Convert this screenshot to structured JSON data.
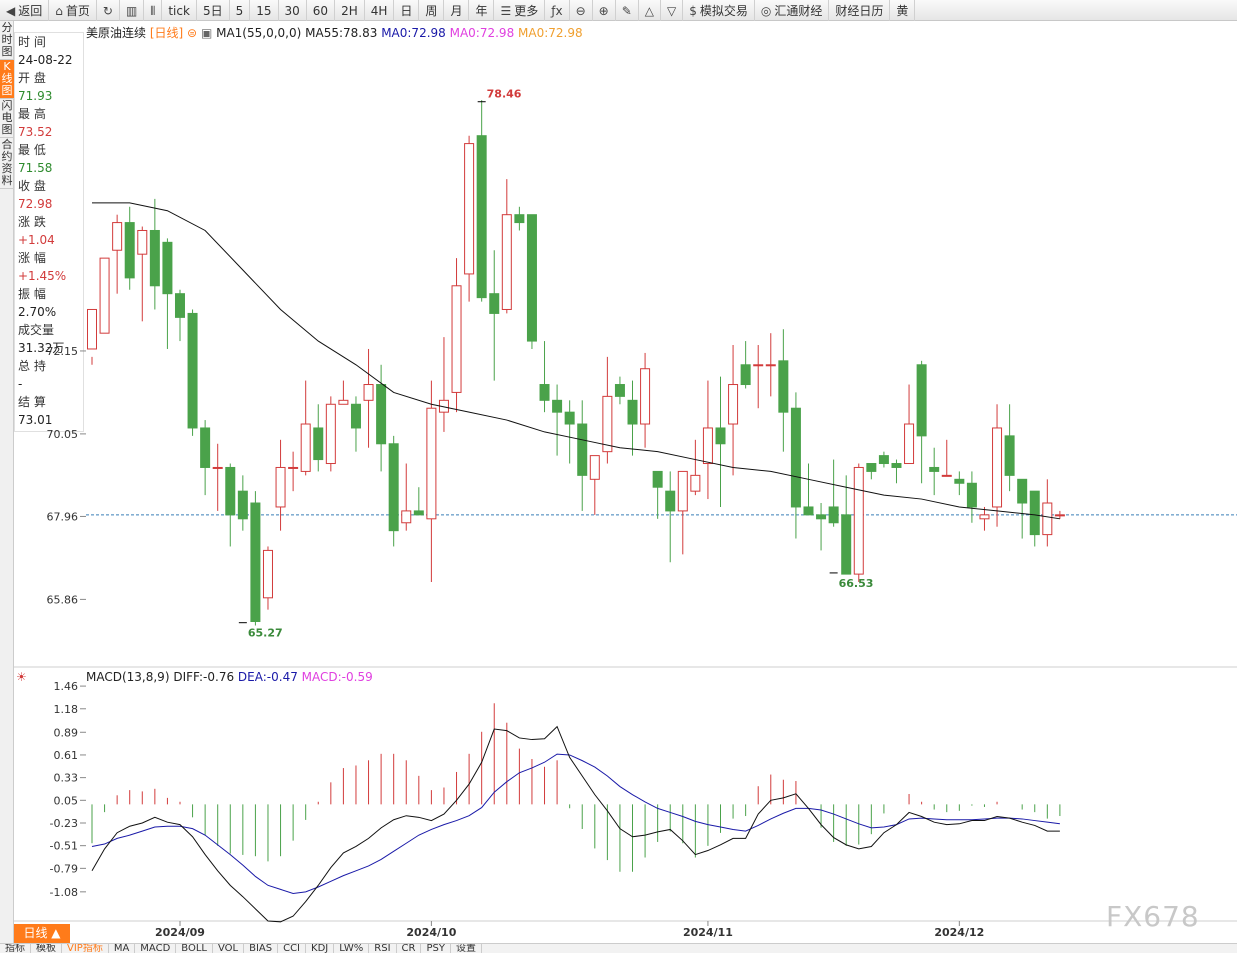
{
  "toolbar": {
    "items": [
      {
        "label": "返回",
        "icon": "back-icon",
        "glyph": "◀"
      },
      {
        "label": "首页",
        "icon": "home-icon",
        "glyph": "⌂"
      },
      {
        "label": "",
        "icon": "refresh-icon",
        "glyph": "↻"
      },
      {
        "label": "",
        "icon": "bar-chart-icon",
        "glyph": "▥"
      },
      {
        "label": "",
        "icon": "candle-icon",
        "glyph": "⫴"
      },
      {
        "label": "tick",
        "icon": "",
        "glyph": ""
      },
      {
        "label": "5日",
        "icon": "",
        "glyph": ""
      },
      {
        "label": "5",
        "icon": "",
        "glyph": ""
      },
      {
        "label": "15",
        "icon": "",
        "glyph": ""
      },
      {
        "label": "30",
        "icon": "",
        "glyph": ""
      },
      {
        "label": "60",
        "icon": "",
        "glyph": ""
      },
      {
        "label": "2H",
        "icon": "",
        "glyph": ""
      },
      {
        "label": "4H",
        "icon": "",
        "glyph": ""
      },
      {
        "label": "日",
        "icon": "",
        "glyph": ""
      },
      {
        "label": "周",
        "icon": "",
        "glyph": ""
      },
      {
        "label": "月",
        "icon": "",
        "glyph": ""
      },
      {
        "label": "年",
        "icon": "",
        "glyph": ""
      },
      {
        "label": "更多",
        "icon": "menu-icon",
        "glyph": "☰"
      },
      {
        "label": "",
        "icon": "formula-icon",
        "glyph": "ƒx"
      },
      {
        "label": "",
        "icon": "zoom-out-icon",
        "glyph": "⊖"
      },
      {
        "label": "",
        "icon": "zoom-in-icon",
        "glyph": "⊕"
      },
      {
        "label": "",
        "icon": "draw-icon",
        "glyph": "✎"
      },
      {
        "label": "",
        "icon": "triangle-up-icon",
        "glyph": "△"
      },
      {
        "label": "",
        "icon": "triangle-down-icon",
        "glyph": "▽"
      },
      {
        "label": "模拟交易",
        "icon": "dollar-icon",
        "glyph": "$"
      },
      {
        "label": "汇通财经",
        "icon": "logo-icon",
        "glyph": "◎"
      },
      {
        "label": "财经日历",
        "icon": "",
        "glyph": ""
      },
      {
        "label": "黄",
        "icon": "",
        "glyph": ""
      }
    ]
  },
  "left_tabs": [
    "分时图",
    "K线图",
    "闪电图",
    "合约资料"
  ],
  "info": [
    {
      "k": "时 间",
      "v": "24-08-22",
      "c": ""
    },
    {
      "k": "开 盘",
      "v": "71.93",
      "c": "green"
    },
    {
      "k": "最 高",
      "v": "73.52",
      "c": "red"
    },
    {
      "k": "最 低",
      "v": "71.58",
      "c": "green"
    },
    {
      "k": "收 盘",
      "v": "72.98",
      "c": "red"
    },
    {
      "k": "涨 跌",
      "v": "+1.04",
      "c": "red"
    },
    {
      "k": "涨 幅",
      "v": "+1.45%",
      "c": "red"
    },
    {
      "k": "振 幅",
      "v": "2.70%",
      "c": ""
    },
    {
      "k": "成交量",
      "v": "31.32万",
      "c": ""
    },
    {
      "k": "总 持",
      "v": "-",
      "c": ""
    },
    {
      "k": "结 算",
      "v": "73.01",
      "c": ""
    }
  ],
  "title": {
    "name": "美原油连续",
    "period": "[日线]",
    "ma1": "MA1(55,0,0,0)",
    "ma55": "MA55:78.83",
    "ma0a": "MA0:72.98",
    "ma0b": "MA0:72.98",
    "ma0c": "MA0:72.98"
  },
  "macd_head": {
    "label": "MACD(13,8,9)",
    "diff": "DIFF:-0.76",
    "dea": "DEA:-0.47",
    "macd": "MACD:-0.59"
  },
  "bottom_tabs": [
    "指标",
    "模板",
    "VIP指标",
    "MA",
    "MACD",
    "BOLL",
    "VOL",
    "BIAS",
    "CCI",
    "KDJ",
    "LW%",
    "RSI",
    "CR",
    "PSY",
    "设置"
  ],
  "daily_tab": "日线 ▲",
  "watermark": "FX678",
  "colors": {
    "up": "#d23b3b",
    "down": "#4aa24a",
    "ma": "#111111",
    "dea": "#1a1aa8",
    "current": "#3a7fb8"
  },
  "chart_data": {
    "type": "candlestick",
    "price_axis": {
      "ticks": [
        72.15,
        70.05,
        67.96,
        65.86
      ],
      "range": [
        64.3,
        80.2
      ]
    },
    "date_axis": [
      {
        "label": "2024/09",
        "index": 7
      },
      {
        "label": "2024/10",
        "index": 27
      },
      {
        "label": "2024/11",
        "index": 49
      },
      {
        "label": "2024/12",
        "index": 69
      }
    ],
    "current_price": 68.0,
    "annotations": [
      {
        "text": "78.46",
        "index": 31,
        "value": 78.46,
        "color": "red"
      },
      {
        "text": "65.27",
        "index": 12,
        "value": 65.27,
        "color": "green"
      },
      {
        "text": "66.53",
        "index": 59,
        "value": 66.53,
        "color": "green"
      }
    ],
    "candles": [
      [
        72.2,
        73.2,
        72.0,
        71.8
      ],
      [
        72.6,
        74.5,
        71.9,
        71.9
      ],
      [
        74.7,
        75.4,
        75.6,
        73.6
      ],
      [
        75.4,
        74.0,
        75.8,
        73.7
      ],
      [
        74.6,
        75.2,
        75.3,
        72.9
      ],
      [
        75.2,
        73.8,
        76.0,
        73.2
      ],
      [
        74.9,
        73.6,
        75.0,
        72.2
      ],
      [
        73.6,
        73.0,
        73.7,
        72.4
      ],
      [
        73.1,
        70.2,
        73.2,
        70.0
      ],
      [
        70.2,
        69.2,
        70.4,
        68.5
      ],
      [
        69.2,
        69.2,
        69.8,
        68.1
      ],
      [
        69.2,
        68.0,
        69.3,
        67.2
      ],
      [
        68.6,
        67.9,
        69.0,
        67.6
      ],
      [
        68.3,
        65.3,
        68.6,
        65.2
      ],
      [
        65.9,
        67.1,
        67.2,
        65.6
      ],
      [
        68.2,
        69.2,
        69.9,
        67.6
      ],
      [
        69.2,
        69.2,
        69.6,
        68.6
      ],
      [
        69.1,
        70.3,
        71.4,
        69.0
      ],
      [
        70.2,
        69.4,
        70.8,
        69.1
      ],
      [
        69.3,
        70.8,
        71.0,
        69.1
      ],
      [
        70.8,
        70.9,
        71.4,
        70.8
      ],
      [
        70.8,
        70.2,
        71.0,
        69.6
      ],
      [
        70.9,
        71.3,
        72.2,
        69.7
      ],
      [
        71.3,
        69.8,
        71.8,
        69.1
      ],
      [
        69.8,
        67.6,
        70.0,
        67.2
      ],
      [
        67.8,
        68.1,
        69.3,
        67.6
      ],
      [
        68.1,
        68.0,
        68.7,
        68.0
      ],
      [
        67.9,
        70.7,
        71.4,
        66.3
      ],
      [
        70.6,
        70.9,
        72.5,
        70.1
      ],
      [
        71.1,
        73.8,
        74.5,
        70.6
      ],
      [
        74.1,
        77.4,
        77.6,
        73.4
      ],
      [
        77.6,
        73.5,
        78.5,
        73.4
      ],
      [
        73.6,
        73.1,
        74.7,
        71.4
      ],
      [
        73.2,
        75.6,
        76.5,
        73.1
      ],
      [
        75.6,
        75.4,
        75.8,
        75.2
      ],
      [
        75.6,
        72.4,
        75.5,
        72.2
      ],
      [
        71.3,
        70.9,
        72.4,
        70.6
      ],
      [
        70.9,
        70.6,
        71.3,
        69.5
      ],
      [
        70.6,
        70.3,
        70.9,
        69.3
      ],
      [
        70.3,
        69.0,
        70.9,
        68.1
      ],
      [
        68.9,
        69.5,
        69.4,
        68.0
      ],
      [
        69.6,
        71.0,
        72.0,
        69.3
      ],
      [
        71.3,
        71.0,
        71.5,
        70.8
      ],
      [
        70.9,
        70.3,
        71.4,
        69.5
      ],
      [
        70.3,
        71.7,
        72.1,
        69.7
      ],
      [
        69.1,
        68.7,
        69.1,
        67.9
      ],
      [
        68.6,
        68.1,
        69.1,
        66.8
      ],
      [
        68.1,
        69.1,
        69.1,
        67.0
      ],
      [
        68.6,
        69.0,
        69.9,
        68.5
      ],
      [
        69.3,
        70.2,
        71.4,
        68.4
      ],
      [
        70.2,
        69.8,
        71.5,
        68.2
      ],
      [
        70.3,
        71.3,
        72.3,
        69.0
      ],
      [
        71.8,
        71.3,
        72.4,
        71.2
      ],
      [
        71.8,
        71.8,
        72.3,
        70.7
      ],
      [
        71.8,
        71.8,
        72.6,
        71.0
      ],
      [
        71.9,
        70.6,
        72.7,
        69.6
      ],
      [
        70.7,
        68.2,
        71.1,
        67.4
      ],
      [
        68.2,
        68.0,
        69.3,
        68.0
      ],
      [
        68.0,
        67.9,
        68.3,
        67.1
      ],
      [
        68.2,
        67.8,
        69.4,
        67.7
      ],
      [
        68.0,
        66.5,
        69.0,
        66.5
      ],
      [
        66.5,
        69.2,
        69.3,
        66.3
      ],
      [
        69.3,
        69.1,
        69.3,
        68.9
      ],
      [
        69.5,
        69.3,
        69.6,
        69.2
      ],
      [
        69.3,
        69.2,
        69.4,
        68.8
      ],
      [
        69.3,
        70.3,
        71.3,
        69.3
      ],
      [
        71.8,
        70.0,
        71.9,
        68.8
      ],
      [
        69.2,
        69.1,
        69.7,
        68.5
      ],
      [
        69.0,
        69.0,
        69.9,
        69.0
      ],
      [
        68.9,
        68.8,
        69.1,
        68.5
      ],
      [
        68.8,
        68.2,
        69.1,
        67.8
      ],
      [
        67.9,
        68.0,
        68.2,
        67.6
      ],
      [
        68.2,
        70.2,
        70.8,
        67.7
      ],
      [
        70.0,
        69.0,
        70.8,
        68.6
      ],
      [
        68.9,
        68.3,
        68.8,
        67.4
      ],
      [
        68.6,
        67.5,
        68.6,
        67.2
      ],
      [
        67.5,
        68.3,
        68.9,
        67.2
      ],
      [
        68.0,
        68.0,
        68.1,
        67.9
      ]
    ],
    "ma55": [
      [
        0,
        75.9
      ],
      [
        3,
        75.9
      ],
      [
        6,
        75.7
      ],
      [
        9,
        75.2
      ],
      [
        12,
        74.2
      ],
      [
        15,
        73.2
      ],
      [
        18,
        72.4
      ],
      [
        21,
        71.8
      ],
      [
        24,
        71.1
      ],
      [
        27,
        70.8
      ],
      [
        30,
        70.6
      ],
      [
        33,
        70.4
      ],
      [
        36,
        70.1
      ],
      [
        39,
        69.9
      ],
      [
        42,
        69.7
      ],
      [
        45,
        69.6
      ],
      [
        48,
        69.4
      ],
      [
        51,
        69.2
      ],
      [
        54,
        69.1
      ],
      [
        57,
        68.9
      ],
      [
        60,
        68.7
      ],
      [
        63,
        68.5
      ],
      [
        66,
        68.4
      ],
      [
        69,
        68.2
      ],
      [
        72,
        68.1
      ],
      [
        75,
        68.0
      ],
      [
        77,
        67.9
      ]
    ],
    "macd": {
      "ticks": [
        1.46,
        1.18,
        0.89,
        0.61,
        0.33,
        0.05,
        -0.23,
        -0.51,
        -0.79,
        -1.08
      ],
      "range": [
        -1.44,
        1.56
      ],
      "diff": [
        -0.82,
        -0.55,
        -0.35,
        -0.27,
        -0.23,
        -0.16,
        -0.22,
        -0.25,
        -0.4,
        -0.62,
        -0.82,
        -1.0,
        -1.14,
        -1.29,
        -1.44,
        -1.45,
        -1.38,
        -1.2,
        -1.0,
        -0.78,
        -0.6,
        -0.52,
        -0.42,
        -0.29,
        -0.19,
        -0.14,
        -0.16,
        -0.2,
        -0.12,
        0.05,
        0.25,
        0.52,
        0.93,
        0.91,
        0.82,
        0.8,
        0.81,
        0.96,
        0.58,
        0.35,
        0.12,
        -0.08,
        -0.3,
        -0.4,
        -0.38,
        -0.34,
        -0.31,
        -0.45,
        -0.62,
        -0.57,
        -0.5,
        -0.42,
        -0.42,
        -0.12,
        0.05,
        0.08,
        0.13,
        -0.05,
        -0.25,
        -0.41,
        -0.5,
        -0.55,
        -0.52,
        -0.35,
        -0.25,
        -0.1,
        -0.15,
        -0.22,
        -0.25,
        -0.24,
        -0.2,
        -0.2,
        -0.15,
        -0.17,
        -0.22,
        -0.26,
        -0.33,
        -0.33
      ],
      "dea": [
        -0.52,
        -0.49,
        -0.42,
        -0.38,
        -0.33,
        -0.28,
        -0.27,
        -0.27,
        -0.3,
        -0.38,
        -0.5,
        -0.62,
        -0.75,
        -0.89,
        -1.0,
        -1.05,
        -1.1,
        -1.08,
        -1.02,
        -0.95,
        -0.88,
        -0.82,
        -0.76,
        -0.68,
        -0.58,
        -0.48,
        -0.38,
        -0.31,
        -0.25,
        -0.2,
        -0.14,
        -0.04,
        0.15,
        0.28,
        0.39,
        0.45,
        0.52,
        0.62,
        0.61,
        0.54,
        0.46,
        0.35,
        0.22,
        0.12,
        0.03,
        -0.05,
        -0.1,
        -0.15,
        -0.21,
        -0.25,
        -0.28,
        -0.31,
        -0.33,
        -0.26,
        -0.18,
        -0.11,
        -0.05,
        -0.05,
        -0.07,
        -0.12,
        -0.18,
        -0.24,
        -0.29,
        -0.28,
        -0.25,
        -0.18,
        -0.17,
        -0.18,
        -0.19,
        -0.19,
        -0.19,
        -0.18,
        -0.17,
        -0.17,
        -0.18,
        -0.2,
        -0.22,
        -0.24
      ],
      "hist": [
        -0.3,
        -0.06,
        0.07,
        0.11,
        0.1,
        0.12,
        0.05,
        0.02,
        -0.1,
        -0.24,
        -0.32,
        -0.38,
        -0.39,
        -0.4,
        -0.44,
        -0.4,
        -0.28,
        -0.12,
        0.02,
        0.17,
        0.28,
        0.3,
        0.34,
        0.39,
        0.39,
        0.34,
        0.22,
        0.11,
        0.13,
        0.25,
        0.39,
        0.56,
        0.78,
        0.63,
        0.43,
        0.35,
        0.29,
        0.34,
        -0.03,
        -0.19,
        -0.34,
        -0.43,
        -0.52,
        -0.52,
        -0.41,
        -0.29,
        -0.21,
        -0.3,
        -0.41,
        -0.32,
        -0.22,
        -0.11,
        -0.09,
        0.14,
        0.23,
        0.19,
        0.18,
        0.0,
        -0.18,
        -0.29,
        -0.32,
        -0.31,
        -0.23,
        -0.07,
        0.0,
        0.08,
        0.02,
        -0.04,
        -0.06,
        -0.05,
        -0.01,
        -0.02,
        0.02,
        0.0,
        -0.04,
        -0.06,
        -0.11,
        -0.09
      ]
    }
  }
}
